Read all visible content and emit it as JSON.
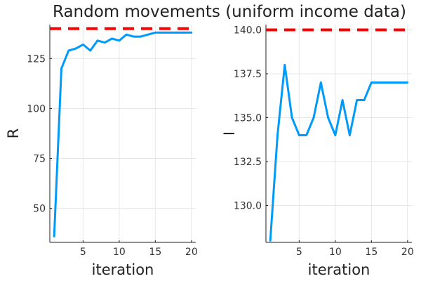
{
  "title": "Random movements (uniform income data)",
  "colors": {
    "series_line": "#009af9",
    "reference_line": "#ff0000",
    "grid": "#e6e6e6",
    "axis": "#222222",
    "background": "#ffffff"
  },
  "chart_data": [
    {
      "type": "line",
      "title": "",
      "xlabel": "iteration",
      "ylabel": "R",
      "xlim": [
        0.4,
        20.6
      ],
      "ylim": [
        33,
        142
      ],
      "x_ticks": [
        5,
        10,
        15,
        20
      ],
      "x_tick_labels": [
        "5",
        "10",
        "15",
        "20"
      ],
      "y_ticks": [
        50,
        75,
        100,
        125
      ],
      "y_tick_labels": [
        "50",
        "75",
        "100",
        "125"
      ],
      "grid": true,
      "legend": "none",
      "x": [
        1,
        2,
        3,
        4,
        5,
        6,
        7,
        8,
        9,
        10,
        11,
        12,
        13,
        14,
        15,
        16,
        17,
        18,
        19,
        20
      ],
      "series": [
        {
          "values": [
            36,
            120,
            129,
            130,
            132,
            129,
            134,
            133,
            135,
            134,
            137,
            136,
            136,
            137,
            138,
            138,
            138,
            138,
            138,
            138
          ],
          "style": "solid",
          "color": "#009af9"
        }
      ],
      "reference_lines": [
        {
          "y": 140,
          "x_range": [
            0.4,
            20
          ],
          "style": "dashed",
          "color": "#ff0000"
        }
      ]
    },
    {
      "type": "line",
      "title": "",
      "xlabel": "iteration",
      "ylabel": "I",
      "xlim": [
        0.4,
        20.6
      ],
      "ylim": [
        127.9,
        140.3
      ],
      "x_ticks": [
        5,
        10,
        15,
        20
      ],
      "x_tick_labels": [
        "5",
        "10",
        "15",
        "20"
      ],
      "y_ticks": [
        130.0,
        132.5,
        135.0,
        137.5,
        140.0
      ],
      "y_tick_labels": [
        "130.0",
        "132.5",
        "135.0",
        "137.5",
        "140.0"
      ],
      "grid": true,
      "legend": "none",
      "x": [
        1,
        2,
        3,
        4,
        5,
        6,
        7,
        8,
        9,
        10,
        11,
        12,
        13,
        14,
        15,
        16,
        17,
        18,
        19,
        20
      ],
      "series": [
        {
          "values": [
            128,
            134,
            138,
            135,
            134,
            134,
            135,
            137,
            135,
            134,
            136,
            134,
            136,
            136,
            137,
            137,
            137,
            137,
            137,
            137
          ],
          "style": "solid",
          "color": "#009af9"
        }
      ],
      "reference_lines": [
        {
          "y": 140,
          "x_range": [
            0.4,
            20
          ],
          "style": "dashed",
          "color": "#ff0000"
        }
      ]
    }
  ]
}
